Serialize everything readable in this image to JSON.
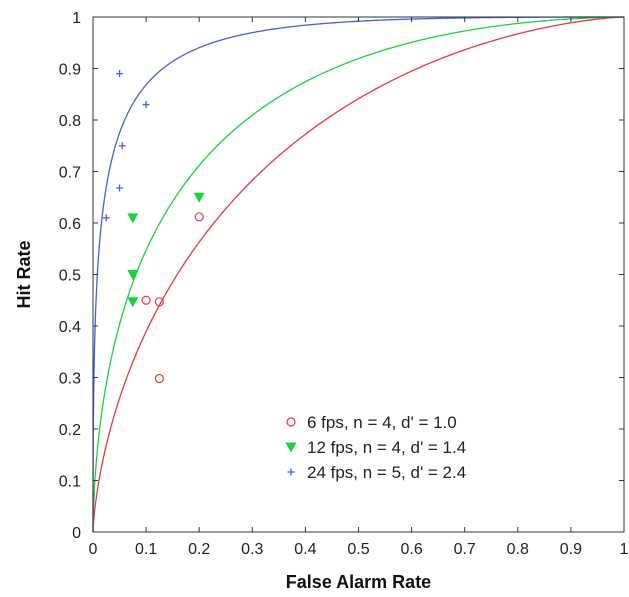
{
  "chart_data": {
    "type": "scatter",
    "title": "",
    "xlabel": "False Alarm Rate",
    "ylabel": "Hit Rate",
    "xlim": [
      0,
      1
    ],
    "ylim": [
      0,
      1
    ],
    "xticks": [
      "0",
      "0.1",
      "0.2",
      "0.3",
      "0.4",
      "0.5",
      "0.6",
      "0.7",
      "0.8",
      "0.9",
      "1"
    ],
    "yticks": [
      "0",
      "0.1",
      "0.2",
      "0.3",
      "0.4",
      "0.5",
      "0.6",
      "0.7",
      "0.8",
      "0.9",
      "1"
    ],
    "grid": false,
    "legend_position": "bottom-right",
    "series": [
      {
        "name": "6 fps, n = 4, d' = 1.0",
        "d_prime": 1.0,
        "color": "#e8383b",
        "marker": "circle",
        "points": [
          [
            0.1,
            0.45
          ],
          [
            0.125,
            0.447
          ],
          [
            0.125,
            0.298
          ],
          [
            0.2,
            0.612
          ]
        ]
      },
      {
        "name": "12 fps, n = 4, d' = 1.4",
        "d_prime": 1.4,
        "color": "#19d23c",
        "marker": "triangle-down",
        "points": [
          [
            0.075,
            0.61
          ],
          [
            0.075,
            0.5
          ],
          [
            0.075,
            0.447
          ],
          [
            0.2,
            0.65
          ]
        ]
      },
      {
        "name": "24 fps, n = 5, d' = 2.4",
        "d_prime": 2.4,
        "color": "#4b5cdc",
        "marker": "plus",
        "points": [
          [
            0.05,
            0.89
          ],
          [
            0.1,
            0.83
          ],
          [
            0.055,
            0.75
          ],
          [
            0.05,
            0.668
          ],
          [
            0.025,
            0.61
          ]
        ]
      }
    ]
  }
}
